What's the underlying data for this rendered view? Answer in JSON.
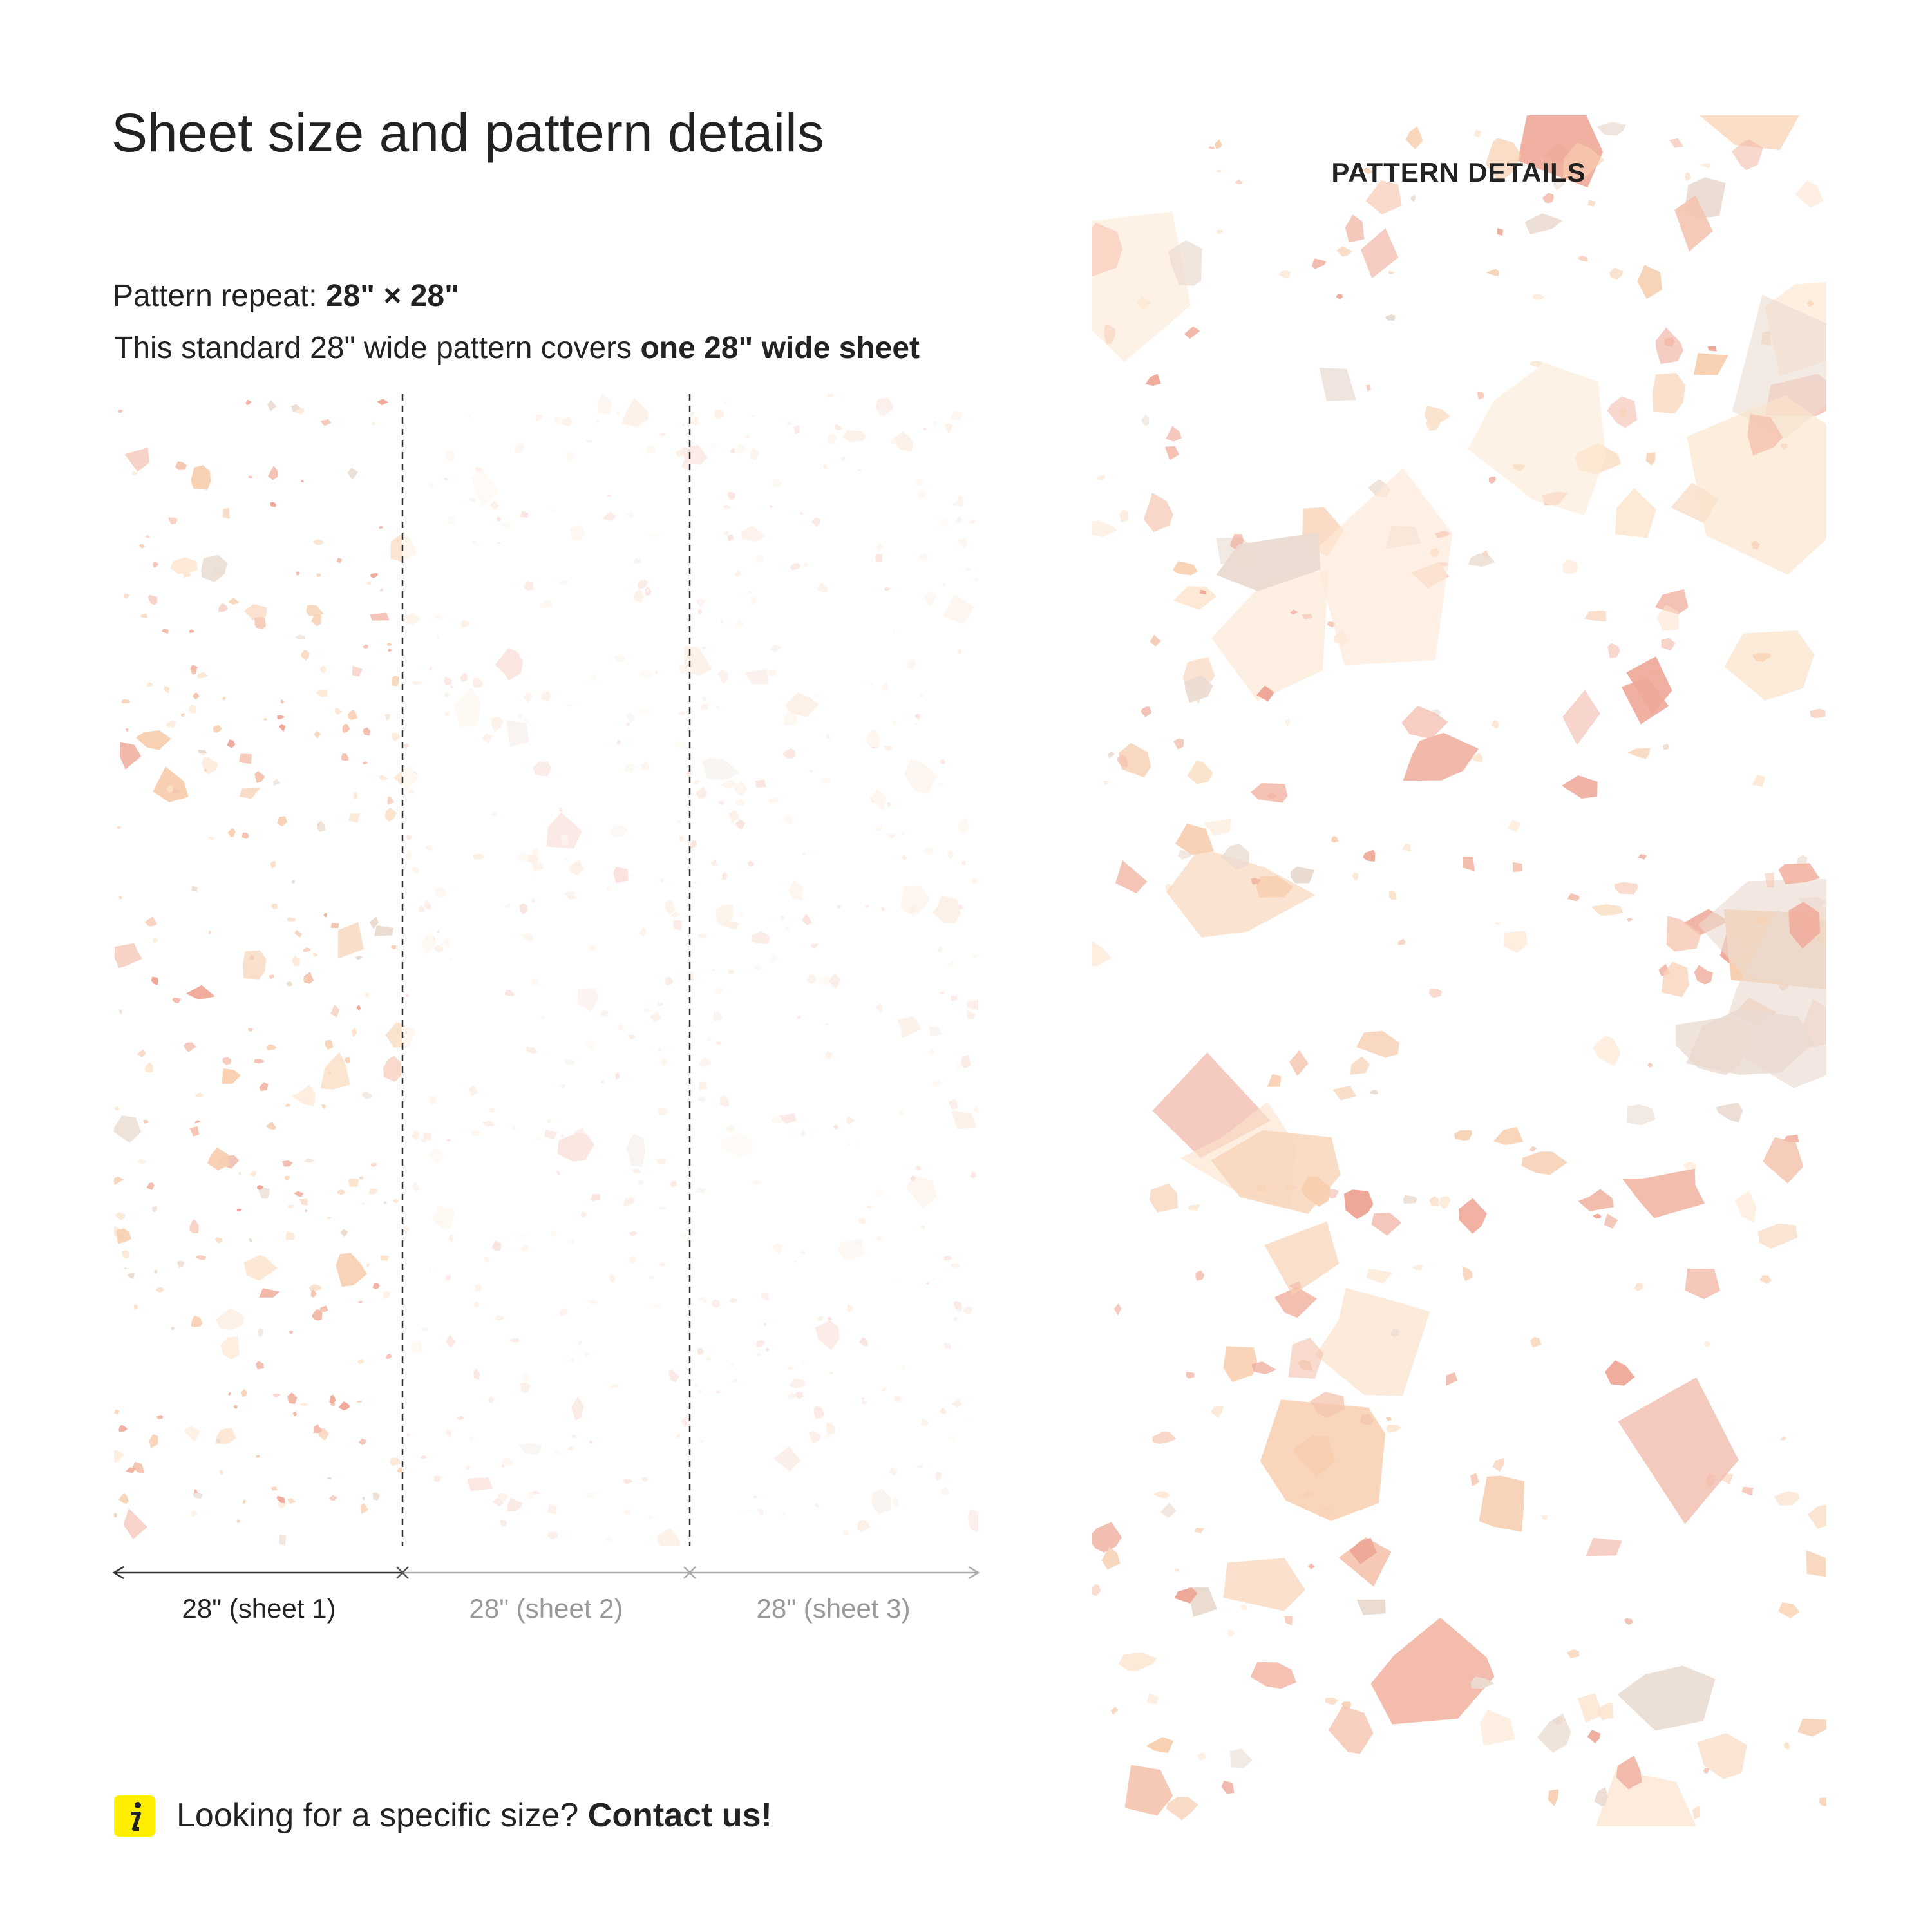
{
  "header": {
    "title": "Sheet size and pattern details"
  },
  "pattern_repeat": {
    "label": "Pattern repeat:",
    "value": "28\" × 28\""
  },
  "coverage": {
    "text": "This standard 28\" wide pattern covers",
    "emphasis": "one 28\" wide sheet"
  },
  "sheets": [
    "28\" (sheet 1)",
    "28\" (sheet 2)",
    "28\" (sheet 3)"
  ],
  "panel": {
    "label": "PATTERN DETAILS"
  },
  "contact": {
    "text": "Looking for a specific size?",
    "link": "Contact us!"
  }
}
